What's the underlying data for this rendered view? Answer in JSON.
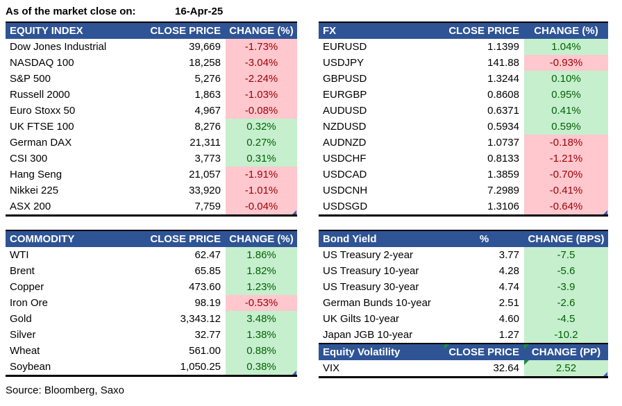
{
  "meta": {
    "as_of_label": "As of the market close on:",
    "as_of_date": "16-Apr-25",
    "source": "Source: Bloomberg, Saxo"
  },
  "colors": {
    "header_bg": "#2F5496",
    "header_text": "#FFFFFF",
    "positive_bg": "#C6EFCE",
    "positive_text": "#006100",
    "negative_bg": "#FFC7CE",
    "negative_text": "#9C0006",
    "flag_green": "#1E8E3E",
    "flag_blue": "#4757B5"
  },
  "tables": {
    "equity_index": {
      "title": "EQUITY INDEX",
      "col_price": "CLOSE PRICE",
      "col_change": "CHANGE (%)",
      "rows": [
        {
          "name": "Dow Jones Industrial",
          "price": "39,669",
          "change": "-1.73%",
          "cls": "down"
        },
        {
          "name": "NASDAQ 100",
          "price": "18,258",
          "change": "-3.04%",
          "cls": "down"
        },
        {
          "name": "S&P 500",
          "price": "5,276",
          "change": "-2.24%",
          "cls": "down"
        },
        {
          "name": "Russell 2000",
          "price": "1,863",
          "change": "-1.03%",
          "cls": "down"
        },
        {
          "name": "Euro Stoxx 50",
          "price": "4,967",
          "change": "-0.08%",
          "cls": "down"
        },
        {
          "name": "UK FTSE 100",
          "price": "8,276",
          "change": "0.32%",
          "cls": "up"
        },
        {
          "name": "German DAX",
          "price": "21,311",
          "change": "0.27%",
          "cls": "up"
        },
        {
          "name": "CSI 300",
          "price": "3,773",
          "change": "0.31%",
          "cls": "up"
        },
        {
          "name": "Hang Seng",
          "price": "21,057",
          "change": "-1.91%",
          "cls": "down"
        },
        {
          "name": "Nikkei 225",
          "price": "33,920",
          "change": "-1.01%",
          "cls": "down"
        },
        {
          "name": "ASX 200",
          "price": "7,759",
          "change": "-0.04%",
          "cls": "down tag-br"
        }
      ]
    },
    "fx": {
      "title": "FX",
      "col_price": "CLOSE PRICE",
      "col_change": "CHANGE (%)",
      "rows": [
        {
          "name": "EURUSD",
          "price": "1.1399",
          "change": "1.04%",
          "cls": "up"
        },
        {
          "name": "USDJPY",
          "price": "141.88",
          "change": "-0.93%",
          "cls": "down"
        },
        {
          "name": "GBPUSD",
          "price": "1.3244",
          "change": "0.10%",
          "cls": "up"
        },
        {
          "name": "EURGBP",
          "price": "0.8608",
          "change": "0.95%",
          "cls": "up"
        },
        {
          "name": "AUDUSD",
          "price": "0.6371",
          "change": "0.41%",
          "cls": "up"
        },
        {
          "name": "NZDUSD",
          "price": "0.5934",
          "change": "0.59%",
          "cls": "up"
        },
        {
          "name": "AUDNZD",
          "price": "1.0737",
          "change": "-0.18%",
          "cls": "down"
        },
        {
          "name": "USDCHF",
          "price": "0.8133",
          "change": "-1.21%",
          "cls": "down"
        },
        {
          "name": "USDCAD",
          "price": "1.3859",
          "change": "-0.70%",
          "cls": "down"
        },
        {
          "name": "USDCNH",
          "price": "7.2989",
          "change": "-0.41%",
          "cls": "down"
        },
        {
          "name": "USDSGD",
          "price": "1.3106",
          "change": "-0.64%",
          "cls": "down tag-br"
        }
      ]
    },
    "commodity": {
      "title": "COMMODITY",
      "col_price": "CLOSE PRICE",
      "col_change": "CHANGE (%)",
      "rows": [
        {
          "name": "WTI",
          "price": "62.47",
          "change": "1.86%",
          "cls": "up"
        },
        {
          "name": "Brent",
          "price": "65.85",
          "change": "1.82%",
          "cls": "up"
        },
        {
          "name": "Copper",
          "price": "473.60",
          "change": "1.23%",
          "cls": "up"
        },
        {
          "name": "Iron Ore",
          "price": "98.19",
          "change": "-0.53%",
          "cls": "down"
        },
        {
          "name": "Gold",
          "price": "3,343.12",
          "change": "3.48%",
          "cls": "up"
        },
        {
          "name": "Silver",
          "price": "32.77",
          "change": "1.38%",
          "cls": "up"
        },
        {
          "name": "Wheat",
          "price": "561.00",
          "change": "0.88%",
          "cls": "up"
        },
        {
          "name": "Soybean",
          "price": "1,050.25",
          "change": "0.38%",
          "cls": "up tag-br"
        }
      ]
    },
    "bond_yield": {
      "title": "Bond Yield",
      "col_price": "%",
      "col_change": "CHANGE (BPS)",
      "rows": [
        {
          "name": "US Treasury 2-year",
          "price": "3.77",
          "change": "-7.5",
          "cls": "up"
        },
        {
          "name": "US Treasury 10-year",
          "price": "4.28",
          "change": "-5.6",
          "cls": "up"
        },
        {
          "name": "US Treasury 30-year",
          "price": "4.74",
          "change": "-3.9",
          "cls": "up"
        },
        {
          "name": "German Bunds 10-year",
          "price": "2.51",
          "change": "-2.6",
          "cls": "up"
        },
        {
          "name": "UK Gilts 10-year",
          "price": "4.60",
          "change": "-4.5",
          "cls": "up"
        },
        {
          "name": "Japan JGB 10-year",
          "price": "1.27",
          "change": "-10.2",
          "cls": "up"
        }
      ]
    },
    "equity_volatility": {
      "title": "Equity Volatility",
      "col_price": "CLOSE PRICE",
      "col_change": "CHANGE (PP)",
      "rows": [
        {
          "name": "VIX",
          "price": "32.64",
          "change": "2.52",
          "cls": "up tag-tl tag-br"
        }
      ]
    }
  }
}
